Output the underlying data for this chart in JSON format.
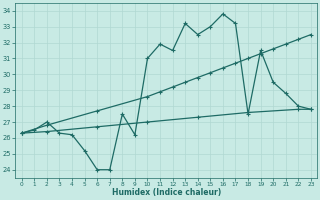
{
  "xlabel": "Humidex (Indice chaleur)",
  "bg_color": "#c8eae4",
  "grid_color": "#b0d8d2",
  "line_color": "#1e6b65",
  "xlim": [
    -0.5,
    23.5
  ],
  "ylim": [
    23.5,
    34.5
  ],
  "xticks": [
    0,
    1,
    2,
    3,
    4,
    5,
    6,
    7,
    8,
    9,
    10,
    11,
    12,
    13,
    14,
    15,
    16,
    17,
    18,
    19,
    20,
    21,
    22,
    23
  ],
  "yticks": [
    24,
    25,
    26,
    27,
    28,
    29,
    30,
    31,
    32,
    33,
    34
  ],
  "series1_x": [
    0,
    1,
    2,
    3,
    4,
    5,
    6,
    7,
    8,
    9,
    10,
    11,
    12,
    13,
    14,
    15,
    16,
    17,
    18,
    19,
    20,
    21,
    22,
    23
  ],
  "series1_y": [
    26.3,
    26.5,
    27.0,
    26.3,
    26.2,
    25.2,
    24.0,
    24.0,
    27.5,
    26.2,
    31.0,
    31.9,
    31.5,
    33.2,
    32.5,
    33.0,
    33.8,
    33.2,
    27.5,
    31.5,
    29.5,
    28.8,
    28.0,
    27.8
  ],
  "series2_x": [
    0,
    2,
    6,
    10,
    11,
    12,
    13,
    14,
    15,
    16,
    17,
    18,
    19,
    20,
    21,
    22,
    23
  ],
  "series2_y": [
    26.3,
    26.8,
    27.7,
    28.6,
    28.9,
    29.2,
    29.5,
    29.8,
    30.1,
    30.4,
    30.7,
    31.0,
    31.3,
    31.6,
    31.9,
    32.2,
    32.5
  ],
  "series3_x": [
    0,
    2,
    6,
    10,
    14,
    18,
    22,
    23
  ],
  "series3_y": [
    26.3,
    26.4,
    26.7,
    27.0,
    27.3,
    27.6,
    27.8,
    27.8
  ]
}
